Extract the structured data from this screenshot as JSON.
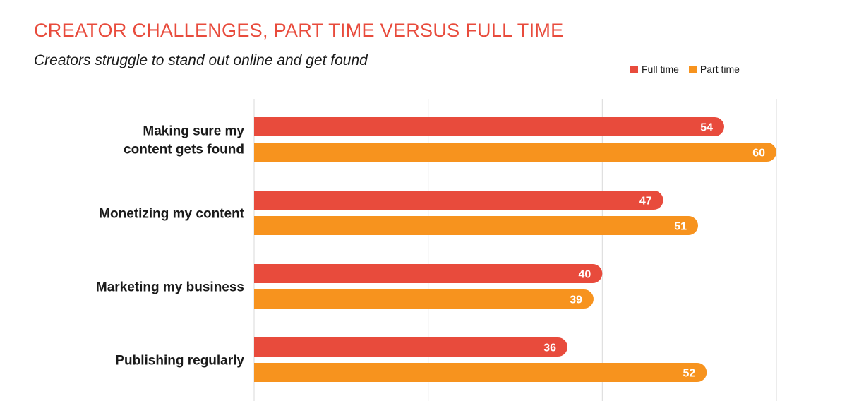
{
  "chart_data": {
    "type": "bar",
    "orientation": "horizontal",
    "title": "CREATOR CHALLENGES, PART TIME VERSUS FULL TIME",
    "subtitle": "Creators struggle to stand out online and get found",
    "categories": [
      [
        "Making sure my",
        "content gets found"
      ],
      [
        "Monetizing my content"
      ],
      [
        "Marketing my business"
      ],
      [
        "Publishing regularly"
      ]
    ],
    "series": [
      {
        "name": "Full time",
        "color": "#e84b3c",
        "values": [
          54,
          47,
          40,
          36
        ]
      },
      {
        "name": "Part time",
        "color": "#f7931e",
        "values": [
          60,
          51,
          39,
          52
        ]
      }
    ],
    "xlim": [
      0,
      60
    ],
    "grid": true,
    "legend_position": "top-right"
  }
}
